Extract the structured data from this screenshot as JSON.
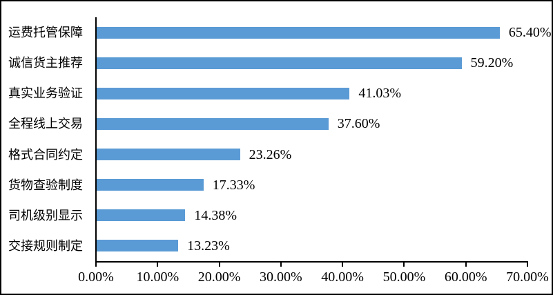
{
  "chart_data": {
    "type": "bar",
    "orientation": "horizontal",
    "title": "",
    "xlabel": "",
    "ylabel": "",
    "grid": false,
    "legend": "none",
    "bar_color": "#5B9BD5",
    "axis_color": "#000000",
    "xlim": [
      0,
      70
    ],
    "categories": [
      "运费托管保障",
      "诚信货主推荐",
      "真实业务验证",
      "全程线上交易",
      "格式合同约定",
      "货物查验制度",
      "司机级别显示",
      "交接规则制定"
    ],
    "values": [
      65.4,
      59.2,
      41.03,
      37.6,
      23.26,
      17.33,
      14.38,
      13.23
    ],
    "value_labels": [
      "65.40%",
      "59.20%",
      "41.03%",
      "37.60%",
      "23.26%",
      "17.33%",
      "14.38%",
      "13.23%"
    ],
    "x_tick_labels": [
      "0.00%",
      "10.00%",
      "20.00%",
      "30.00%",
      "40.00%",
      "50.00%",
      "60.00%",
      "70.00%"
    ]
  }
}
